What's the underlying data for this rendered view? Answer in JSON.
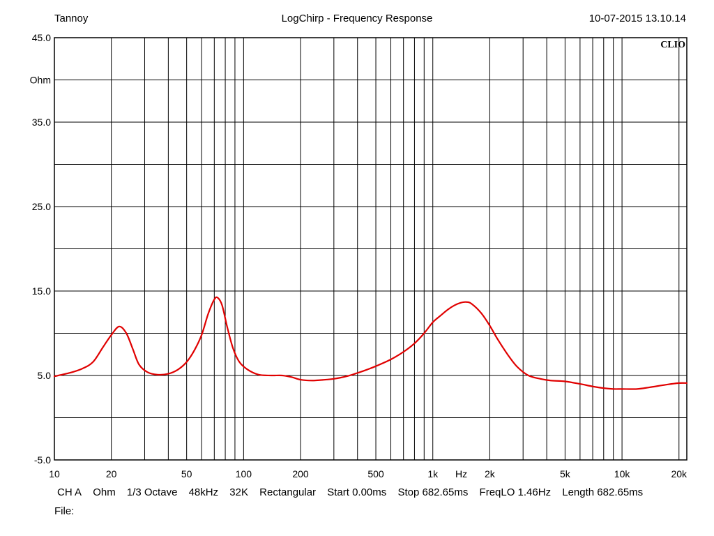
{
  "header": {
    "left": "Tannoy",
    "center": "LogChirp - Frequency Response",
    "right": "10-07-2015 13.10.14"
  },
  "footer": {
    "items": [
      "CH A",
      "Ohm",
      "1/3 Octave",
      "48kHz",
      "32K",
      "Rectangular",
      "Start 0.00ms",
      "Stop 682.65ms",
      "FreqLO 1.46Hz",
      "Length 682.65ms"
    ],
    "file_label": "File:"
  },
  "chart_data": {
    "type": "line",
    "xscale": "log",
    "xlim": [
      10,
      22000
    ],
    "ylim": [
      -5,
      45
    ],
    "grid": true,
    "brand": "CLIO",
    "xlabel": "Hz",
    "ylabel": "Ohm",
    "x_tick_labels": [
      {
        "v": 10,
        "t": "10"
      },
      {
        "v": 20,
        "t": "20"
      },
      {
        "v": 50,
        "t": "50"
      },
      {
        "v": 100,
        "t": "100"
      },
      {
        "v": 200,
        "t": "200"
      },
      {
        "v": 500,
        "t": "500"
      },
      {
        "v": 1000,
        "t": "1k"
      },
      {
        "v": 2000,
        "t": "2k"
      },
      {
        "v": 5000,
        "t": "5k"
      },
      {
        "v": 10000,
        "t": "10k"
      },
      {
        "v": 20000,
        "t": "20k"
      }
    ],
    "y_tick_labels": [
      {
        "v": 45,
        "t": "45.0"
      },
      {
        "v": 35,
        "t": "35.0"
      },
      {
        "v": 25,
        "t": "25.0"
      },
      {
        "v": 15,
        "t": "15.0"
      },
      {
        "v": 5,
        "t": "5.0"
      },
      {
        "v": -5,
        "t": "-5.0"
      }
    ],
    "y_gridlines": [
      45,
      40,
      35,
      30,
      25,
      20,
      15,
      10,
      5,
      0,
      -5
    ],
    "line_color": "#e00000",
    "series": [
      {
        "values": [
          [
            10,
            4.9
          ],
          [
            12,
            5.3
          ],
          [
            14,
            5.8
          ],
          [
            16,
            6.6
          ],
          [
            18,
            8.3
          ],
          [
            20,
            9.8
          ],
          [
            22,
            10.8
          ],
          [
            24,
            10.0
          ],
          [
            26,
            8.1
          ],
          [
            28,
            6.3
          ],
          [
            31,
            5.4
          ],
          [
            35,
            5.1
          ],
          [
            40,
            5.2
          ],
          [
            45,
            5.7
          ],
          [
            50,
            6.6
          ],
          [
            55,
            8.0
          ],
          [
            60,
            9.8
          ],
          [
            65,
            12.3
          ],
          [
            70,
            14.0
          ],
          [
            73,
            14.2
          ],
          [
            77,
            13.3
          ],
          [
            82,
            10.7
          ],
          [
            88,
            8.2
          ],
          [
            95,
            6.6
          ],
          [
            105,
            5.7
          ],
          [
            120,
            5.1
          ],
          [
            140,
            5.0
          ],
          [
            160,
            5.0
          ],
          [
            180,
            4.8
          ],
          [
            200,
            4.5
          ],
          [
            230,
            4.4
          ],
          [
            270,
            4.5
          ],
          [
            300,
            4.6
          ],
          [
            350,
            4.9
          ],
          [
            400,
            5.3
          ],
          [
            450,
            5.7
          ],
          [
            500,
            6.1
          ],
          [
            600,
            6.9
          ],
          [
            700,
            7.8
          ],
          [
            800,
            8.8
          ],
          [
            900,
            10.0
          ],
          [
            1000,
            11.3
          ],
          [
            1100,
            12.1
          ],
          [
            1200,
            12.8
          ],
          [
            1300,
            13.3
          ],
          [
            1400,
            13.6
          ],
          [
            1500,
            13.7
          ],
          [
            1600,
            13.5
          ],
          [
            1800,
            12.4
          ],
          [
            2000,
            10.9
          ],
          [
            2200,
            9.3
          ],
          [
            2500,
            7.4
          ],
          [
            2800,
            6.0
          ],
          [
            3200,
            5.0
          ],
          [
            3700,
            4.6
          ],
          [
            4200,
            4.4
          ],
          [
            5000,
            4.3
          ],
          [
            6000,
            4.0
          ],
          [
            7000,
            3.7
          ],
          [
            8000,
            3.5
          ],
          [
            9000,
            3.4
          ],
          [
            10000,
            3.4
          ],
          [
            12000,
            3.4
          ],
          [
            14000,
            3.6
          ],
          [
            17000,
            3.9
          ],
          [
            20000,
            4.1
          ],
          [
            22000,
            4.1
          ]
        ]
      }
    ]
  }
}
